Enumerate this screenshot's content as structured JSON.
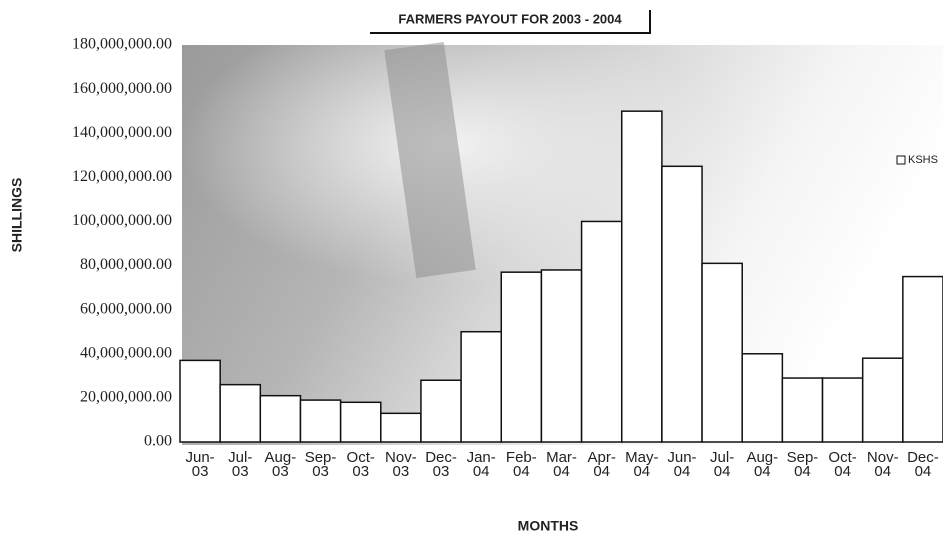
{
  "chart_data": {
    "type": "bar",
    "title": "FARMERS PAYOUT FOR 2003 - 2004",
    "x_label": "MONTHS",
    "y_label": "SHILLINGS",
    "categories": [
      "Jun-03",
      "Jul-03",
      "Aug-03",
      "Sep-03",
      "Oct-03",
      "Nov-03",
      "Dec-03",
      "Jan-04",
      "Feb-04",
      "Mar-04",
      "Apr-04",
      "May-04",
      "Jun-04",
      "Jul-04",
      "Aug-04",
      "Sep-04",
      "Oct-04",
      "Nov-04",
      "Dec-04"
    ],
    "series": [
      {
        "name": "KSHS",
        "color": "#ffffff",
        "values": [
          37000000,
          26000000,
          21000000,
          19000000,
          18000000,
          13000000,
          28000000,
          50000000,
          77000000,
          78000000,
          100000000,
          150000000,
          125000000,
          81000000,
          40000000,
          29000000,
          29000000,
          38000000,
          75000000
        ]
      }
    ],
    "ylim": [
      0,
      180000000
    ],
    "yticks": [
      {
        "value": 0,
        "label": "0.00"
      },
      {
        "value": 20000000,
        "label": "20,000,000.00"
      },
      {
        "value": 40000000,
        "label": "40,000,000.00"
      },
      {
        "value": 60000000,
        "label": "60,000,000.00"
      },
      {
        "value": 80000000,
        "label": "80,000,000.00"
      },
      {
        "value": 100000000,
        "label": "100,000,000.00"
      },
      {
        "value": 120000000,
        "label": "120,000,000.00"
      },
      {
        "value": 140000000,
        "label": "140,000,000.00"
      },
      {
        "value": 160000000,
        "label": "160,000,000.00"
      },
      {
        "value": 180000000,
        "label": "180,000,000.00"
      }
    ],
    "grid": false,
    "legend": "right"
  }
}
